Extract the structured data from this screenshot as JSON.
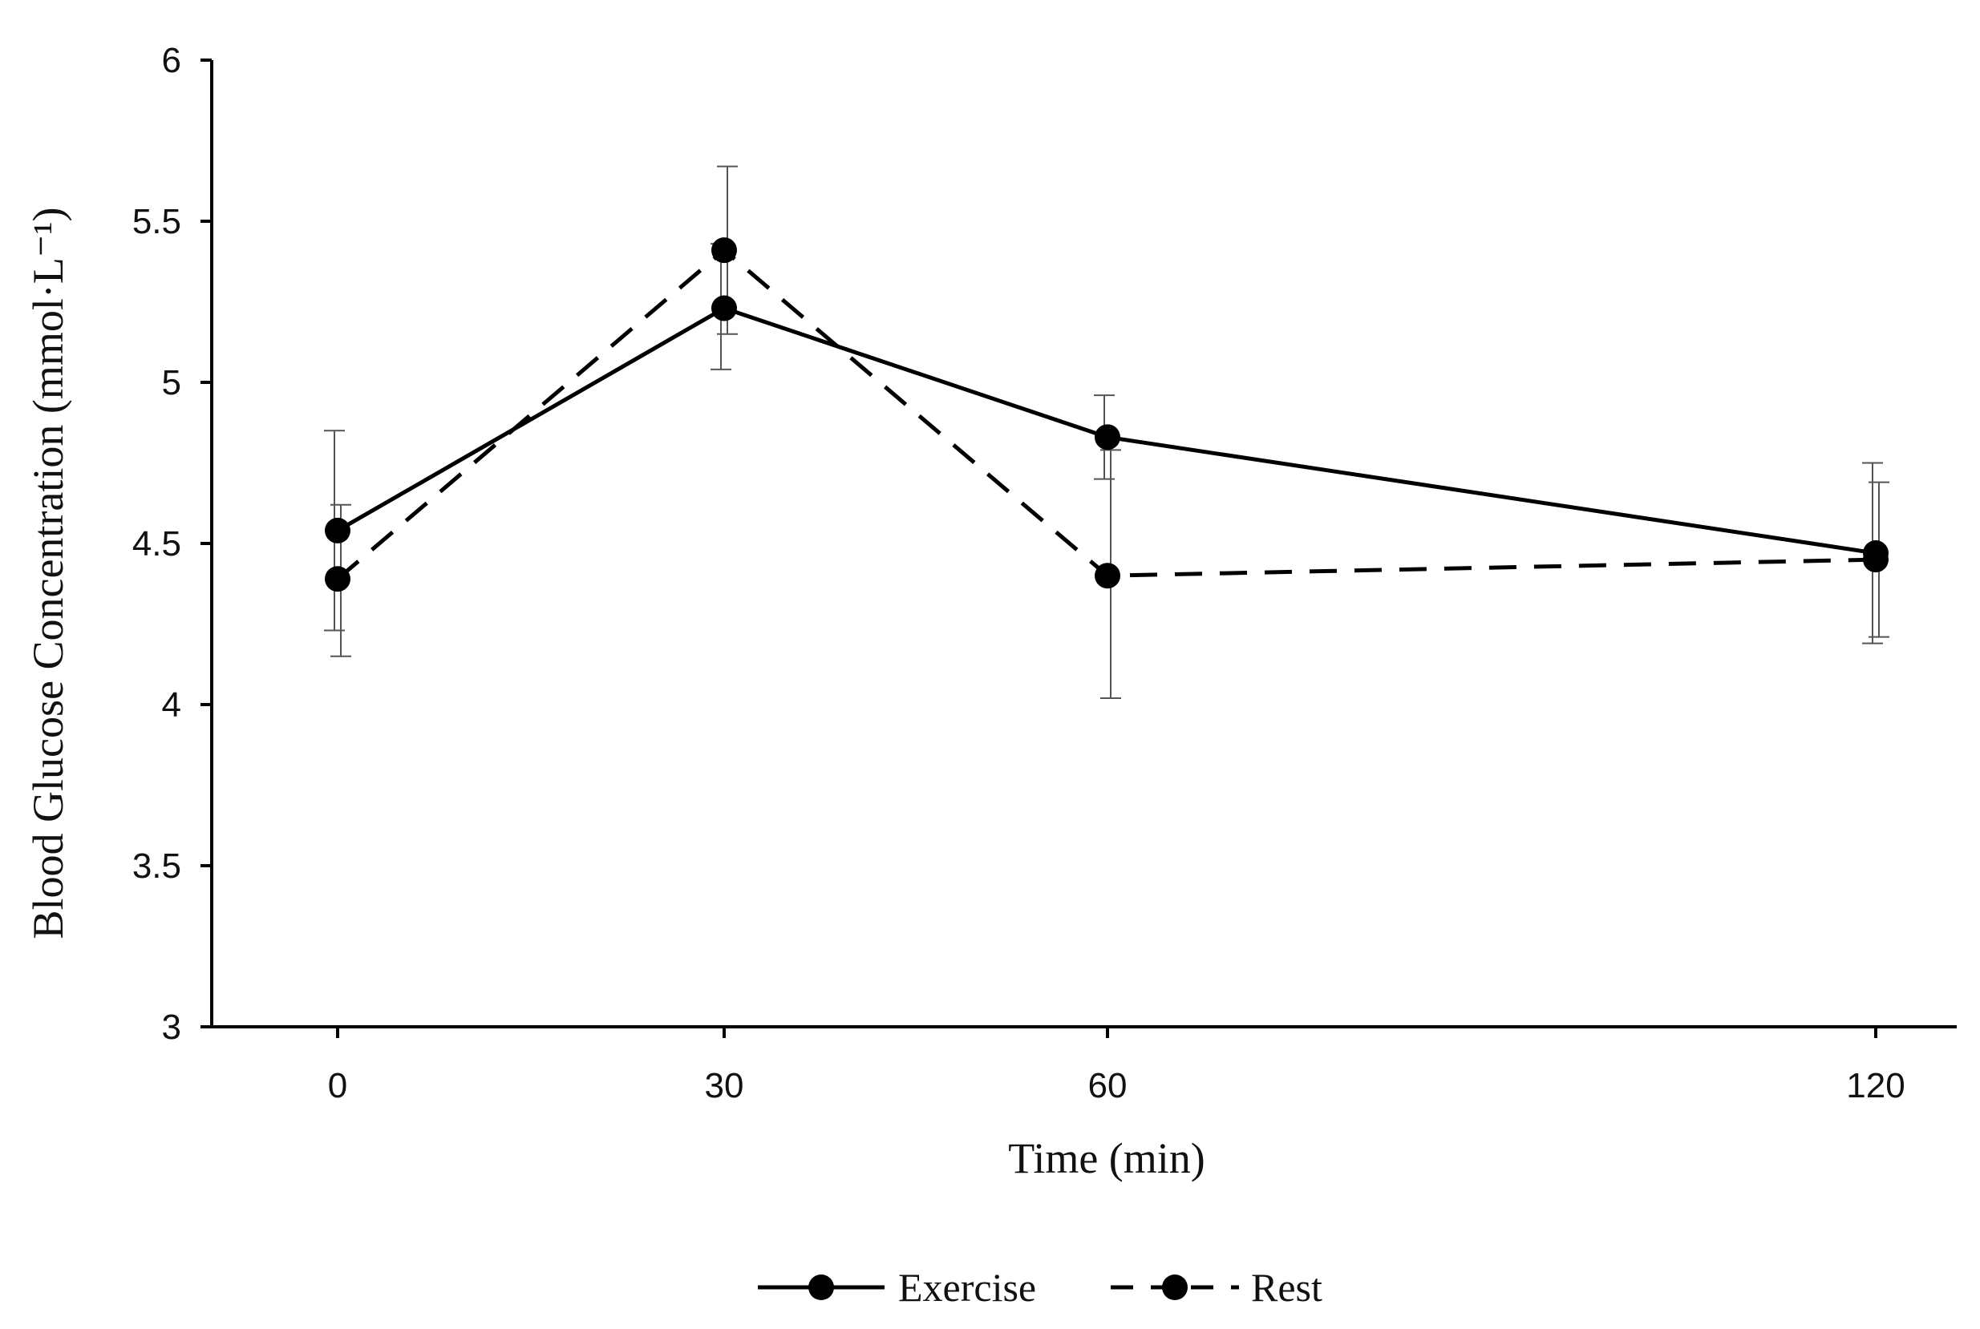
{
  "chart_data": {
    "type": "line",
    "title": "",
    "xlabel": "Time (min)",
    "ylabel": "Blood Glucose Concentration (mmol·L⁻¹)",
    "categories": [
      "0",
      "30",
      "60",
      "120"
    ],
    "ylim": [
      3,
      6
    ],
    "yticks": [
      "3",
      "3.5",
      "4",
      "4.5",
      "5",
      "5.5",
      "6"
    ],
    "grid": false,
    "legend_position": "bottom-center",
    "series": [
      {
        "name": "Exercise",
        "line_style": "solid",
        "color": "#000000",
        "values": [
          4.54,
          5.23,
          4.83,
          4.47
        ],
        "error_low": [
          4.23,
          5.04,
          4.7,
          4.19
        ],
        "error_high": [
          4.85,
          5.43,
          4.96,
          4.75
        ]
      },
      {
        "name": "Rest",
        "line_style": "dashed",
        "color": "#000000",
        "values": [
          4.39,
          5.41,
          4.4,
          4.45
        ],
        "error_low": [
          4.15,
          5.15,
          4.02,
          4.21
        ],
        "error_high": [
          4.62,
          5.67,
          4.79,
          4.69
        ]
      }
    ]
  }
}
